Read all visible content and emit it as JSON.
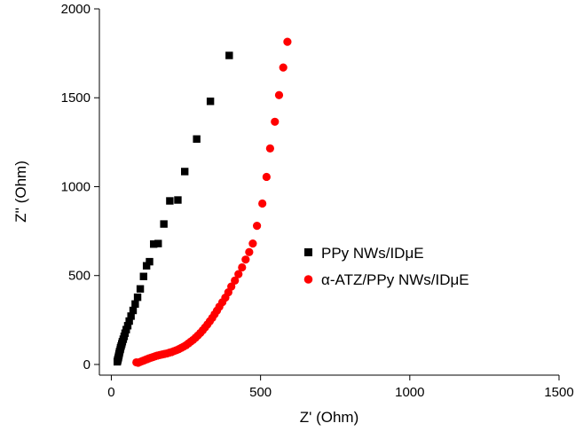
{
  "chart_data": {
    "type": "scatter",
    "title": "",
    "xlabel": "Z' (Ohm)",
    "ylabel": "Z'' (Ohm)",
    "xlim": [
      -40,
      1500
    ],
    "ylim": [
      -60,
      2000
    ],
    "xticks": [
      0,
      500,
      1000,
      1500
    ],
    "yticks": [
      0,
      500,
      1000,
      1500,
      2000
    ],
    "grid": false,
    "legend_position": "right",
    "series": [
      {
        "name": "PPy NWs/IDμE",
        "marker": "square",
        "color": "#000000",
        "points": [
          [
            20,
            15
          ],
          [
            21,
            22
          ],
          [
            22,
            28
          ],
          [
            23,
            35
          ],
          [
            24,
            42
          ],
          [
            25,
            50
          ],
          [
            26,
            58
          ],
          [
            27,
            66
          ],
          [
            28,
            74
          ],
          [
            30,
            84
          ],
          [
            31,
            94
          ],
          [
            33,
            104
          ],
          [
            35,
            116
          ],
          [
            37,
            128
          ],
          [
            40,
            142
          ],
          [
            43,
            158
          ],
          [
            46,
            176
          ],
          [
            50,
            196
          ],
          [
            55,
            218
          ],
          [
            60,
            244
          ],
          [
            66,
            272
          ],
          [
            73,
            304
          ],
          [
            80,
            340
          ],
          [
            88,
            378
          ],
          [
            97,
            425
          ],
          [
            108,
            495
          ],
          [
            118,
            555
          ],
          [
            128,
            578
          ],
          [
            142,
            677
          ],
          [
            157,
            680
          ],
          [
            176,
            790
          ],
          [
            196,
            920
          ],
          [
            223,
            925
          ],
          [
            246,
            1085
          ],
          [
            286,
            1268
          ],
          [
            332,
            1480
          ],
          [
            395,
            1738
          ]
        ]
      },
      {
        "name": "α-ATZ/PPy NWs/IDμE",
        "marker": "circle",
        "color": "#ff0000",
        "points": [
          [
            84,
            12
          ],
          [
            90,
            10
          ],
          [
            96,
            14
          ],
          [
            102,
            18
          ],
          [
            108,
            22
          ],
          [
            114,
            26
          ],
          [
            120,
            30
          ],
          [
            126,
            34
          ],
          [
            133,
            38
          ],
          [
            140,
            42
          ],
          [
            147,
            46
          ],
          [
            154,
            50
          ],
          [
            162,
            53
          ],
          [
            170,
            56
          ],
          [
            178,
            59
          ],
          [
            186,
            62
          ],
          [
            194,
            66
          ],
          [
            202,
            70
          ],
          [
            210,
            75
          ],
          [
            218,
            80
          ],
          [
            226,
            86
          ],
          [
            234,
            93
          ],
          [
            242,
            100
          ],
          [
            250,
            108
          ],
          [
            258,
            118
          ],
          [
            266,
            128
          ],
          [
            274,
            138
          ],
          [
            282,
            150
          ],
          [
            290,
            163
          ],
          [
            298,
            177
          ],
          [
            306,
            192
          ],
          [
            314,
            208
          ],
          [
            322,
            225
          ],
          [
            330,
            243
          ],
          [
            338,
            262
          ],
          [
            346,
            282
          ],
          [
            354,
            303
          ],
          [
            362,
            325
          ],
          [
            372,
            350
          ],
          [
            382,
            376
          ],
          [
            392,
            406
          ],
          [
            402,
            438
          ],
          [
            414,
            472
          ],
          [
            426,
            508
          ],
          [
            438,
            546
          ],
          [
            450,
            590
          ],
          [
            462,
            632
          ],
          [
            474,
            680
          ],
          [
            488,
            780
          ],
          [
            506,
            905
          ],
          [
            520,
            1055
          ],
          [
            532,
            1215
          ],
          [
            548,
            1365
          ],
          [
            562,
            1515
          ],
          [
            576,
            1670
          ],
          [
            590,
            1815
          ]
        ]
      }
    ]
  }
}
